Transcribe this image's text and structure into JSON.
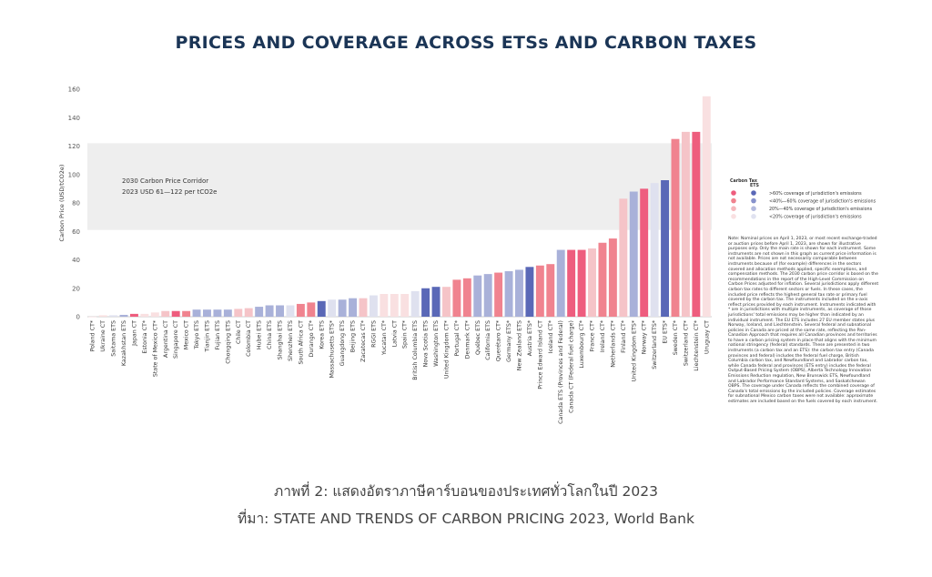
{
  "title": "PRICES AND COVERAGE ACROSS ETSs AND CARBON TAXES",
  "caption_line1": "ภาพที่ 2: แสดงอัตราภาษีคาร์บอนของประเทศทั่วโลกในปี 2023",
  "caption_line2": "ที่มา: STATE AND TRENDS OF CARBON PRICING 2023, World Bank",
  "chart_data": {
    "type": "bar",
    "ylabel": "Carbon Price (USD/tCO2e)",
    "ylim": [
      0,
      160
    ],
    "yticks": [
      "0",
      "20",
      "40",
      "60",
      "80",
      "100",
      "120",
      "140",
      "160"
    ],
    "corridor": {
      "range": [
        61,
        122
      ],
      "line1": "2030 Carbon Price Corridor",
      "line2": "2023 USD 61—122 per tCO2e"
    },
    "categories": [
      "Poland CT*",
      "Ukraine CT",
      "Saitama ETS",
      "Kazakhstan ETS",
      "Japan CT",
      "Estonia CT*",
      "State of Mexico CT*",
      "Argentina CT",
      "Singapore CT",
      "Mexico CT",
      "Tokyo ETS",
      "Tianjin ETS",
      "Fujian ETS",
      "Chongqing ETS",
      "Chile CT",
      "Colombia CT",
      "Hubei ETS",
      "China ETS",
      "Shanghai ETS",
      "Shenzhen ETS",
      "South Africa CT",
      "Durango CT*",
      "Korea ETS",
      "Massachusetts ETS*",
      "Guangdong ETS",
      "Beijing ETS",
      "Zacatecas CT*",
      "RGGI ETS",
      "Yucatan CT*",
      "Latvia CT",
      "Spain CT*",
      "British Columbia ETS",
      "Nova Scotia ETS",
      "Washington ETS",
      "United Kingdom CT*",
      "Portugal CT*",
      "Denmark CT*",
      "Québec ETS",
      "California ETS",
      "Querétaro CT*",
      "Germany ETS*",
      "New Zealand ETS",
      "Austria ETS*",
      "Prince Edward Island CT",
      "Iceland CT*",
      "Canada ETS (Provinces and Federal)",
      "Canada CT (Federal fuel charge)",
      "Luxembourg CT*",
      "France CT*",
      "Ireland CT*",
      "Netherlands CT*",
      "Finland CT*",
      "United Kingdom ETS*",
      "Norway CT*",
      "Switzerland ETS*",
      "EU ETS*",
      "Sweden CT*",
      "Switzerland CT*",
      "Liechtenstein CT*",
      "Uruguay CT"
    ],
    "values": [
      0.1,
      1,
      1,
      1.3,
      2,
      2,
      3,
      4,
      4,
      4,
      5,
      5,
      5,
      5,
      5.5,
      6,
      7,
      8,
      8,
      8,
      9,
      10,
      11,
      12,
      12,
      13,
      13,
      15,
      16,
      16,
      16,
      18,
      20,
      21,
      21,
      26,
      27,
      29,
      30,
      31,
      32,
      33,
      35,
      36,
      37,
      47,
      47,
      47,
      48,
      52,
      55,
      83,
      88,
      90,
      94,
      96,
      125,
      130,
      130,
      155
    ],
    "colors": [
      "#f9e0e1",
      "#f9e0e1",
      "#dfe1ef",
      "#a9b1d9",
      "#ee5d7e",
      "#f9e0e1",
      "#f9e0e1",
      "#f5c4c8",
      "#ee5d7e",
      "#f0838f",
      "#a9b1d9",
      "#a9b1d9",
      "#a9b1d9",
      "#a9b1d9",
      "#f5c4c8",
      "#f5c4c8",
      "#a9b1d9",
      "#a9b1d9",
      "#a9b1d9",
      "#dfe1ef",
      "#f0838f",
      "#f0838f",
      "#5a68b7",
      "#dfe1ef",
      "#a9b1d9",
      "#a9b1d9",
      "#f5c4c8",
      "#dfe1ef",
      "#f9e0e1",
      "#f9e0e1",
      "#f9e0e1",
      "#dfe1ef",
      "#5a68b7",
      "#5a68b7",
      "#f5c4c8",
      "#f0838f",
      "#f0838f",
      "#a9b1d9",
      "#a9b1d9",
      "#f0838f",
      "#a9b1d9",
      "#a9b1d9",
      "#5a68b7",
      "#f0838f",
      "#f0838f",
      "#a9b1d9",
      "#ee5d7e",
      "#ee5d7e",
      "#f5c4c8",
      "#f0838f",
      "#f0838f",
      "#f5c4c8",
      "#a9b1d9",
      "#ee5d7e",
      "#dfe1ef",
      "#5a68b7",
      "#f0838f",
      "#f5c4c8",
      "#ee5d7e",
      "#f9e0e1"
    ],
    "legend": {
      "head_tax": "Carbon Tax",
      "head_ets": "ETS",
      "rows": [
        {
          "label": ">60% coverage of jurisdiction's emissions",
          "tax": "#ee5d7e",
          "ets": "#5a68b7"
        },
        {
          "label": "<40%—60% coverage of jurisdiction's emissions",
          "tax": "#f0838f",
          "ets": "#8792cc"
        },
        {
          "label": "20%—40% coverage of jurisdiction's emissions",
          "tax": "#f5b7bc",
          "ets": "#b3bade"
        },
        {
          "label": "<20% coverage of jurisdiction's emissions",
          "tax": "#f9e0e1",
          "ets": "#e0e2f0"
        }
      ]
    }
  },
  "note": "Note: Nominal prices on April 1, 2023, or most recent exchange-traded or auction prices before April 1, 2023, are shown for illustrative purposes only. Only the main rate is shown for each instrument. Some instruments are not shown in this graph as current price information is not available. Prices are not necessarily comparable between instruments because of (for example) differences in the sectors covered and allocation methods applied, specific exemptions, and compensation methods. The 2030 carbon price corridor is based on the recommendations in the report of the High-Level Commission on Carbon Prices adjusted for inflation. Several jurisdictions apply different carbon tax rates to different sectors or fuels. In these cases, the included price reflects the highest general tax rate or primary fuel covered by the carbon tax. The instruments included on the x-axis reflect prices provided by each instrument. Instruments indicated with * are in jurisdictions with multiple instruments, as coverage of those jurisdictions' total emissions may be higher than indicated by an individual instrument. The EU ETS includes 27 EU member states plus Norway, Iceland, and Liechtenstein. Several federal and subnational policies in Canada are priced at the same rate, reflecting the Pan-Canadian Approach that requires all Canadian provinces and territories to have a carbon pricing system in place that aligns with the minimum national stringency (federal) standards. These are presented in two instruments (a carbon tax and an ETS): the carbon tax entry (Canada provinces and federal) includes the federal fuel charge, British Columbia carbon tax, and Newfoundland and Labrador carbon tax, while Canada federal and provinces (ETS entry) includes the federal Output-Based Pricing System (OBPS), Alberta Technology Innovation Emissions Reduction regulation, New Brunswick ETS, Newfoundland and Labrador Performance Standard Systems, and Saskatchewan OBPS. The coverage under Canada reflects the combined coverage of Canada's total emissions by the included policies. Coverage estimates for subnational Mexico carbon taxes were not available: approximate estimates are included based on the fuels covered by each instrument."
}
